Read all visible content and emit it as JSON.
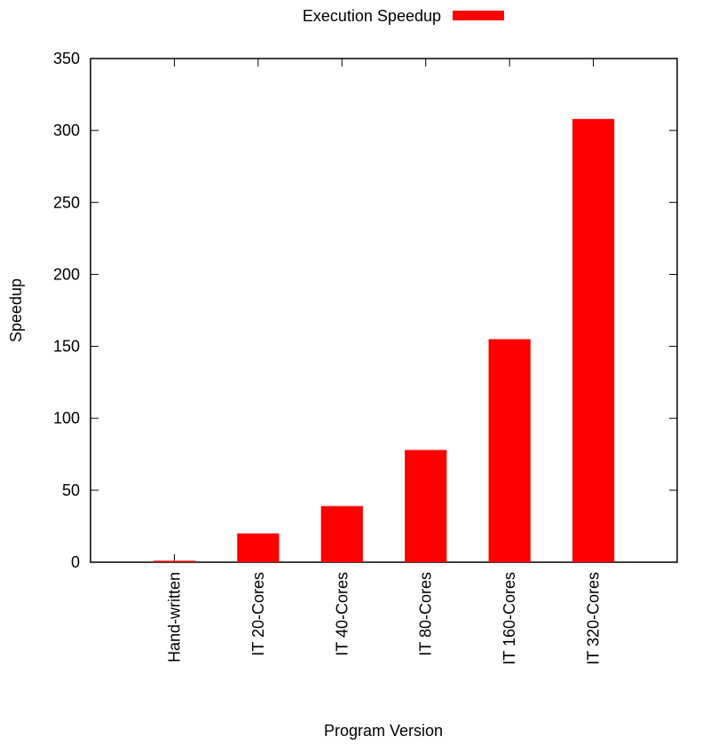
{
  "chart_data": {
    "type": "bar",
    "categories": [
      "Hand-written",
      "IT 20-Cores",
      "IT 40-Cores",
      "IT 80-Cores",
      "IT 160-Cores",
      "IT 320-Cores"
    ],
    "series": [
      {
        "name": "Execution Speedup",
        "color": "#ff0000",
        "values": [
          1,
          20,
          39,
          78,
          155,
          308
        ]
      }
    ],
    "ylim": [
      0,
      350
    ],
    "yticks": [
      0,
      50,
      100,
      150,
      200,
      250,
      300,
      350
    ],
    "xlabel": "Program Version",
    "ylabel": "Speedup",
    "legend": "top",
    "grid": false
  }
}
